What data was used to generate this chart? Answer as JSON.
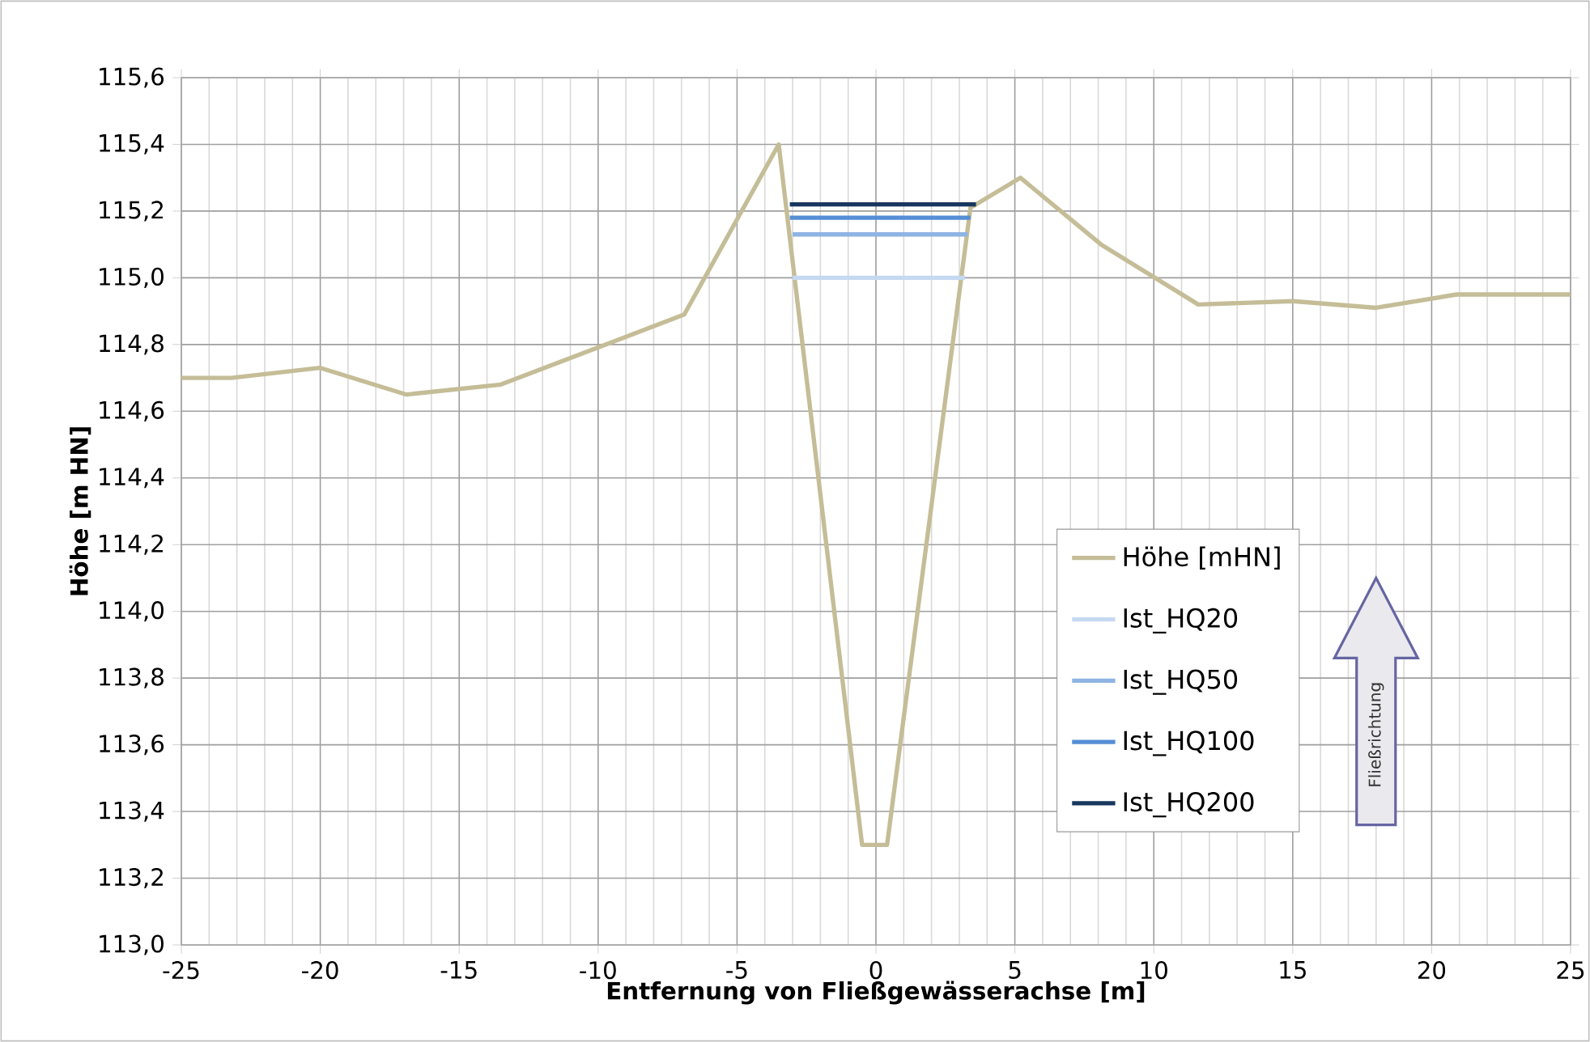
{
  "chart_data": {
    "type": "line",
    "xlabel": "Entfernung von Fließgewässerachse [m]",
    "ylabel": "Höhe [m HN]",
    "xlim": [
      -25,
      25
    ],
    "ylim": [
      113.0,
      115.6
    ],
    "xticks": [
      -25,
      -20,
      -15,
      -10,
      -5,
      0,
      5,
      10,
      15,
      20,
      25
    ],
    "yticks": [
      {
        "value": 113.0,
        "label": "113,0"
      },
      {
        "value": 113.2,
        "label": "113,2"
      },
      {
        "value": 113.4,
        "label": "113,4"
      },
      {
        "value": 113.6,
        "label": "113,6"
      },
      {
        "value": 113.8,
        "label": "113,8"
      },
      {
        "value": 114.0,
        "label": "114,0"
      },
      {
        "value": 114.2,
        "label": "114,2"
      },
      {
        "value": 114.4,
        "label": "114,4"
      },
      {
        "value": 114.6,
        "label": "114,6"
      },
      {
        "value": 114.8,
        "label": "114,8"
      },
      {
        "value": 115.0,
        "label": "115,0"
      },
      {
        "value": 115.2,
        "label": "115,2"
      },
      {
        "value": 115.4,
        "label": "115,4"
      },
      {
        "value": 115.6,
        "label": "115,6"
      }
    ],
    "grid": true,
    "legend": "bottom right",
    "marker": "none",
    "line_style": "solid",
    "series": [
      {
        "name": "Höhe [mHN]",
        "color": "#c4bd97",
        "x": [
          -25,
          -23.2,
          -20,
          -16.9,
          -13.5,
          -6.9,
          -3.5,
          -0.5,
          0.4,
          3.4,
          5.2,
          8.1,
          11.6,
          15.0,
          18.0,
          20.9,
          25
        ],
        "values": [
          114.7,
          114.7,
          114.73,
          114.65,
          114.68,
          114.89,
          115.4,
          113.3,
          113.3,
          115.21,
          115.3,
          115.1,
          114.92,
          114.93,
          114.91,
          114.95,
          114.95
        ]
      },
      {
        "name": "Ist_HQ20",
        "color": "#c6d9f1",
        "x": [
          -3.0,
          3.2
        ],
        "values": [
          115.0,
          115.0
        ]
      },
      {
        "name": "Ist_HQ50",
        "color": "#8eb4e3",
        "x": [
          -3.0,
          3.3
        ],
        "values": [
          115.13,
          115.13
        ]
      },
      {
        "name": "Ist_HQ100",
        "color": "#558ed5",
        "x": [
          -3.1,
          3.4
        ],
        "values": [
          115.18,
          115.18
        ]
      },
      {
        "name": "Ist_HQ200",
        "color": "#17375e",
        "x": [
          -3.1,
          3.6
        ],
        "values": [
          115.22,
          115.22
        ]
      }
    ],
    "annotations": [
      "Fließrichtung"
    ]
  }
}
